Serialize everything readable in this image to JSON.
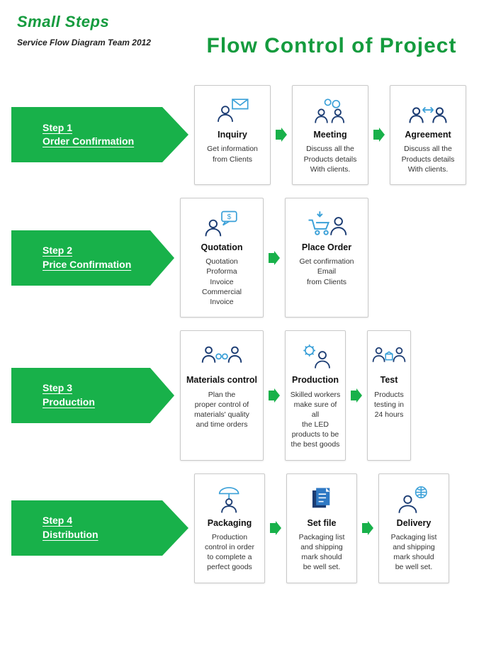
{
  "colors": {
    "brand_green": "#149b3e",
    "arrow_green": "#18b14a",
    "card_border": "#c9c9c9",
    "icon_blue": "#1b3c73",
    "icon_light": "#3aa0d8",
    "text": "#222222",
    "background": "#ffffff"
  },
  "header": {
    "brand": "Small Steps",
    "subtitle": "Service Flow Diagram\nTeam\n2012",
    "title": "Flow Control of Project"
  },
  "steps": [
    {
      "step_label": "Step 1",
      "step_name": "Order Confirmation",
      "cards": [
        {
          "icon": "person-mail",
          "title": "Inquiry",
          "desc": "Get information\nfrom Clients"
        },
        {
          "icon": "two-people-talk",
          "title": "Meeting",
          "desc": "Discuss all the\nProducts details\nWith clients."
        },
        {
          "icon": "two-people-arrow",
          "title": "Agreement",
          "desc": "Discuss all the\nProducts details\nWith clients."
        }
      ]
    },
    {
      "step_label": "Step 2",
      "step_name": "Price Confirmation",
      "cards": [
        {
          "icon": "person-quote",
          "title": "Quotation",
          "desc": "Quotation\nProforma\nInvoice\nCommercial\nInvoice"
        },
        {
          "icon": "cart-person",
          "title": "Place Order",
          "desc": "Get confirmation\nEmail\nfrom Clients"
        }
      ]
    },
    {
      "step_label": "Step 3",
      "step_name": "Production",
      "cards": [
        {
          "icon": "people-chain",
          "title": "Materials\ncontrol",
          "desc": "Plan the\nproper control of\nmaterials' quality\nand time orders"
        },
        {
          "icon": "gear-person",
          "title": "Production",
          "desc": "Skilled workers\nmake sure of all\nthe LED\nproducts to be\nthe best goods"
        },
        {
          "icon": "people-box",
          "title": "Test",
          "desc": "Products\ntesting in\n24 hours"
        }
      ]
    },
    {
      "step_label": "Step 4",
      "step_name": "Distribution",
      "cards": [
        {
          "icon": "umbrella-person",
          "title": "Packaging",
          "desc": "Production\ncontrol in order\nto complete a\nperfect goods"
        },
        {
          "icon": "docs",
          "title": "Set file",
          "desc": "Packaging list\nand shipping\nmark should\nbe well set."
        },
        {
          "icon": "globe-person",
          "title": "Delivery",
          "desc": "Packaging list\nand shipping\nmark should\nbe well set."
        }
      ]
    }
  ]
}
